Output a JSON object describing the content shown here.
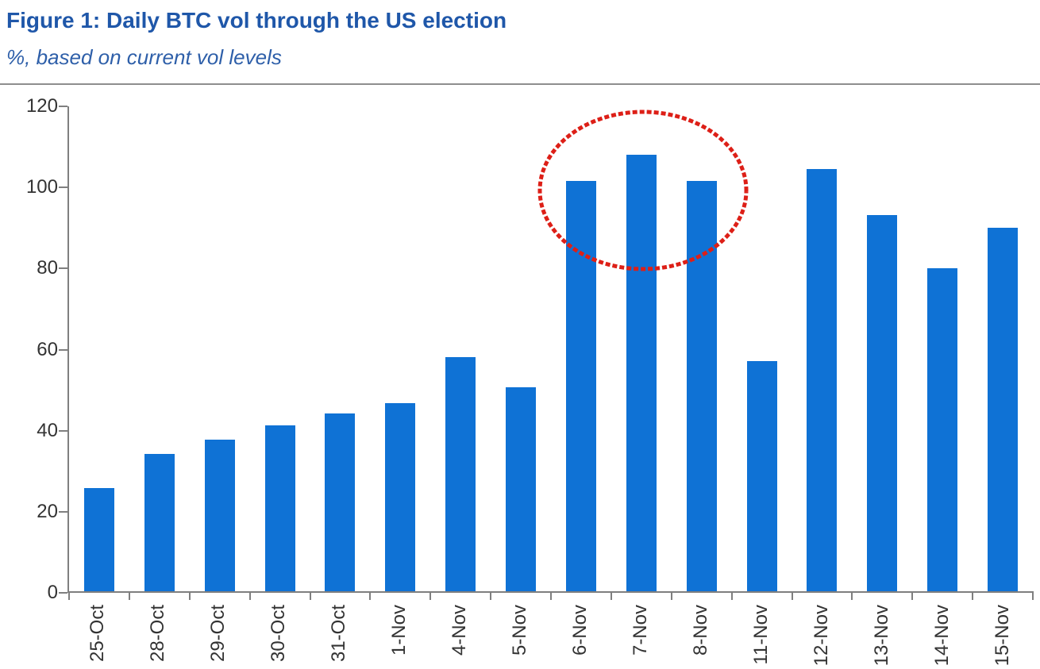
{
  "figure": {
    "title": "Figure 1: Daily BTC vol through the US election",
    "subtitle": "%, based on current vol levels",
    "title_color": "#1f57a9",
    "subtitle_color": "#2e5fa9"
  },
  "chart_data": {
    "type": "bar",
    "title": "Figure 1: Daily BTC vol through the US election",
    "subtitle": "%, based on current vol levels",
    "unit": "%",
    "categories": [
      "25-Oct",
      "28-Oct",
      "29-Oct",
      "30-Oct",
      "31-Oct",
      "1-Nov",
      "4-Nov",
      "5-Nov",
      "6-Nov",
      "7-Nov",
      "8-Nov",
      "11-Nov",
      "12-Nov",
      "13-Nov",
      "14-Nov",
      "15-Nov"
    ],
    "values": [
      25.5,
      34,
      37.5,
      41,
      44,
      46.5,
      58,
      50.5,
      101.5,
      108,
      101.5,
      57,
      104.5,
      93,
      80,
      90
    ],
    "xlabel": "",
    "ylabel": "",
    "ylim": [
      0,
      120
    ],
    "y_ticks": [
      0,
      20,
      40,
      60,
      80,
      100,
      120
    ],
    "x_tick_style": "category-boundaries",
    "x_label_rotation_deg": -90,
    "grid": false,
    "legend": false,
    "bar_color": "#0f72d5",
    "axis_color": "#7f7f7f",
    "tick_label_color": "#333333",
    "annotation": {
      "type": "dotted-ellipse",
      "color": "#dd1f17",
      "highlighted_categories": [
        "6-Nov",
        "7-Nov",
        "8-Nov"
      ]
    }
  }
}
